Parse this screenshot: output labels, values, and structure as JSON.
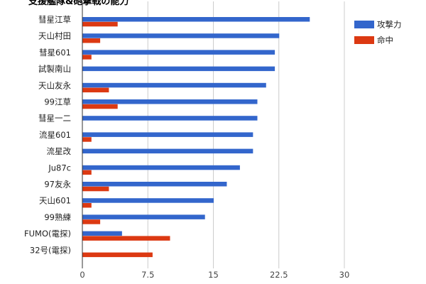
{
  "chart_data": {
    "type": "bar",
    "orientation": "horizontal",
    "title": "支援艦隊&砲撃戦の能力",
    "categories": [
      "彗星江草",
      "天山村田",
      "彗星601",
      "試製南山",
      "天山友永",
      "99江草",
      "彗星一二",
      "流星601",
      "流星改",
      "Ju87c",
      "97友永",
      "天山601",
      "99熟練",
      "FUMO(電探)",
      "32号(電探)"
    ],
    "series": [
      {
        "name": "攻撃力",
        "color": "#3366cc",
        "values": [
          26,
          22.5,
          22,
          22,
          21,
          20,
          20,
          19.5,
          19.5,
          18,
          16.5,
          15,
          14,
          4.5,
          0
        ]
      },
      {
        "name": "命中",
        "color": "#dc3912",
        "values": [
          4,
          2,
          1,
          0,
          3,
          4,
          0,
          1,
          0,
          1,
          3,
          1,
          2,
          10,
          8
        ]
      }
    ],
    "xlim": [
      0,
      30
    ],
    "xticks": [
      "0",
      "7.5",
      "15",
      "22.5",
      "30"
    ],
    "grid": true,
    "legend_position": "right"
  }
}
